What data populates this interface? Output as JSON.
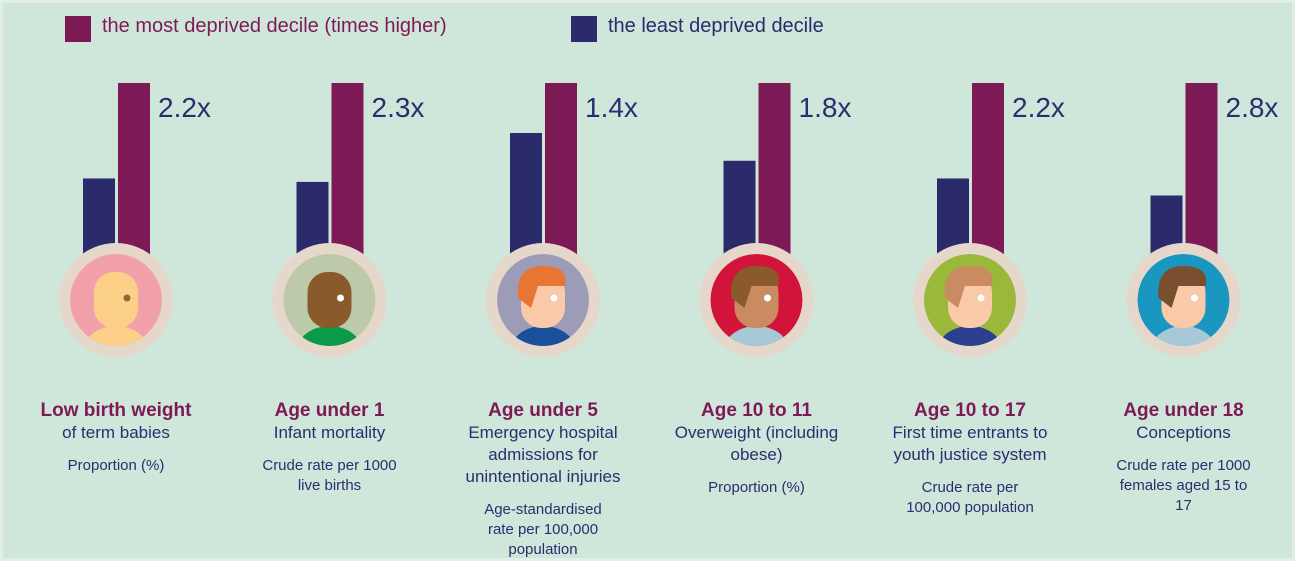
{
  "chart_data": {
    "type": "bar",
    "categories": [
      "Low birth weight",
      "Age under 1",
      "Age under 5",
      "Age 10 to 11",
      "Age 10 to 17",
      "Age under 18"
    ],
    "category_subtitles": [
      "of term babies",
      "Infant mortality",
      "Emergency hospital admissions for unintentional injuries",
      "Overweight (including obese)",
      "First time entrants to youth justice system",
      "Conceptions"
    ],
    "measures": [
      "Proportion (%)",
      "Crude rate per 1000 live births",
      "Age-standardised rate per 100,000 population",
      "Proportion (%)",
      "Crude rate per 100,000 population",
      "Crude rate per 1000 females aged 15 to 17"
    ],
    "series": [
      {
        "name": "the most deprived decile (times higher)",
        "color": "#7d1a55",
        "values": [
          2.2,
          2.3,
          1.4,
          1.8,
          2.2,
          2.8
        ],
        "value_labels": [
          "2.2x",
          "2.3x",
          "1.4x",
          "1.8x",
          "2.2x",
          "2.8x"
        ]
      },
      {
        "name": "the least deprived decile",
        "color": "#2b2a6b",
        "values": [
          1,
          1,
          1,
          1,
          1,
          1
        ]
      }
    ]
  }
}
